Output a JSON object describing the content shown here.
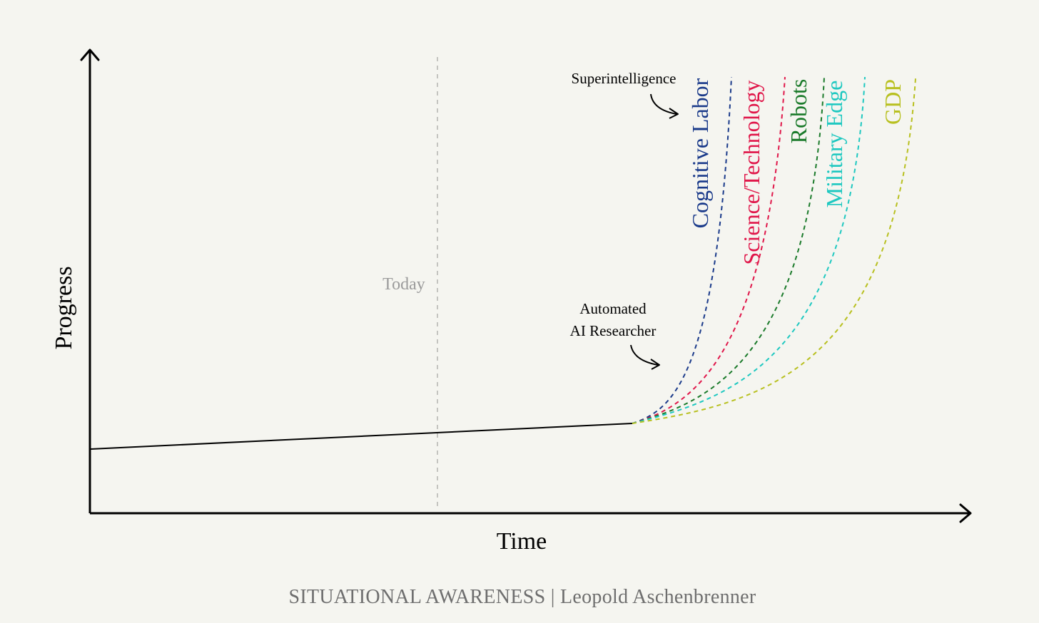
{
  "chart_data": {
    "type": "line",
    "title": "",
    "xlabel": "Time",
    "ylabel": "Progress",
    "grid": false,
    "today_label": "Today",
    "baseline": {
      "name": "",
      "color": "#000000",
      "style": "solid"
    },
    "series": [
      {
        "name": "Cognitive Labor",
        "color": "#1a3a8a",
        "style": "dashed"
      },
      {
        "name": "Science/Technology",
        "color": "#e0174a",
        "style": "dashed"
      },
      {
        "name": "Robots",
        "color": "#1a7a2a",
        "style": "dashed"
      },
      {
        "name": "Military Edge",
        "color": "#1ec8c0",
        "style": "dashed"
      },
      {
        "name": "GDP",
        "color": "#b8c020",
        "style": "dashed"
      }
    ],
    "annotations": [
      {
        "id": "superintelligence",
        "lines": [
          "Superintelligence"
        ]
      },
      {
        "id": "automated-researcher",
        "lines": [
          "Automated",
          "AI Researcher"
        ]
      }
    ]
  },
  "footer": "SITUATIONAL AWARENESS | Leopold Aschenbrenner"
}
